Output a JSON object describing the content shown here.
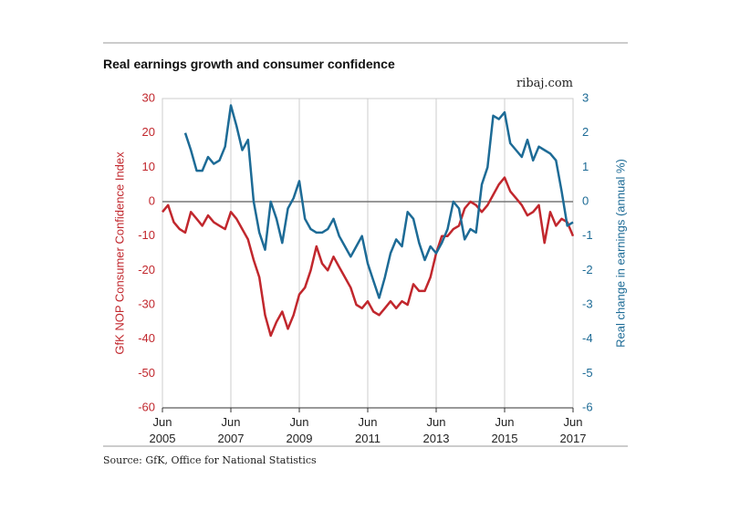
{
  "chart_data": {
    "type": "line",
    "title": "Real earnings growth and consumer confidence",
    "site": "ribaj.com",
    "source": "Source: GfK, Office for National Statistics",
    "ylabel": "GfK NOP Consumer Confidence Index",
    "y2label": "Real change in earnings (annual %)",
    "x": [
      "2005-06",
      "2005-08",
      "2005-10",
      "2005-12",
      "2006-02",
      "2006-04",
      "2006-06",
      "2006-08",
      "2006-10",
      "2006-12",
      "2007-02",
      "2007-04",
      "2007-06",
      "2007-08",
      "2007-10",
      "2007-12",
      "2008-02",
      "2008-04",
      "2008-06",
      "2008-08",
      "2008-10",
      "2008-12",
      "2009-02",
      "2009-04",
      "2009-06",
      "2009-08",
      "2009-10",
      "2009-12",
      "2010-02",
      "2010-04",
      "2010-06",
      "2010-08",
      "2010-10",
      "2010-12",
      "2011-02",
      "2011-04",
      "2011-06",
      "2011-08",
      "2011-10",
      "2011-12",
      "2012-02",
      "2012-04",
      "2012-06",
      "2012-08",
      "2012-10",
      "2012-12",
      "2013-02",
      "2013-04",
      "2013-06",
      "2013-08",
      "2013-10",
      "2013-12",
      "2014-02",
      "2014-04",
      "2014-06",
      "2014-08",
      "2014-10",
      "2014-12",
      "2015-02",
      "2015-04",
      "2015-06",
      "2015-08",
      "2015-10",
      "2015-12",
      "2016-02",
      "2016-04",
      "2016-06",
      "2016-08",
      "2016-10",
      "2016-12",
      "2017-02",
      "2017-04",
      "2017-06"
    ],
    "series": [
      {
        "name": "GfK NOP Consumer Confidence Index",
        "color": "#c1272d",
        "axis": "y",
        "values": [
          -3,
          -1,
          -6,
          -8,
          -9,
          -3,
          -5,
          -7,
          -4,
          -6,
          -7,
          -8,
          -3,
          -5,
          -8,
          -11,
          -17,
          -22,
          -33,
          -39,
          -35,
          -32,
          -37,
          -33,
          -27,
          -25,
          -20,
          -13,
          -18,
          -20,
          -16,
          -19,
          -22,
          -25,
          -30,
          -31,
          -29,
          -32,
          -33,
          -31,
          -29,
          -31,
          -29,
          -30,
          -24,
          -26,
          -26,
          -22,
          -15,
          -10,
          -10,
          -8,
          -7,
          -2,
          0,
          -1,
          -3,
          -1,
          2,
          5,
          7,
          3,
          1,
          -1,
          -4,
          -3,
          -1,
          -12,
          -3,
          -7,
          -5,
          -6,
          -10
        ]
      },
      {
        "name": "Real change in earnings (annual %)",
        "color": "#1d6b96",
        "axis": "y2",
        "values": [
          null,
          null,
          null,
          null,
          2.0,
          1.5,
          0.9,
          0.9,
          1.3,
          1.1,
          1.2,
          1.6,
          2.8,
          2.2,
          1.5,
          1.8,
          0.0,
          -0.9,
          -1.4,
          0.0,
          -0.5,
          -1.2,
          -0.2,
          0.1,
          0.6,
          -0.5,
          -0.8,
          -0.9,
          -0.9,
          -0.8,
          -0.5,
          -1.0,
          -1.3,
          -1.6,
          -1.3,
          -1.0,
          -1.8,
          -2.3,
          -2.8,
          -2.2,
          -1.5,
          -1.1,
          -1.3,
          -0.3,
          -0.5,
          -1.2,
          -1.7,
          -1.3,
          -1.5,
          -1.2,
          -0.8,
          0.0,
          -0.2,
          -1.1,
          -0.8,
          -0.9,
          0.5,
          1.0,
          2.5,
          2.4,
          2.6,
          1.7,
          1.5,
          1.3,
          1.8,
          1.2,
          1.6,
          1.5,
          1.4,
          1.2,
          0.3,
          -0.7,
          -0.6
        ]
      }
    ],
    "xlim": [
      "2005-06",
      "2017-06"
    ],
    "xticks": [
      {
        "value": "2005-06",
        "label": "Jun 2005"
      },
      {
        "value": "2007-06",
        "label": "Jun 2007"
      },
      {
        "value": "2009-06",
        "label": "Jun 2009"
      },
      {
        "value": "2011-06",
        "label": "Jun 2011"
      },
      {
        "value": "2013-06",
        "label": "Jun 2013"
      },
      {
        "value": "2015-06",
        "label": "Jun 2015"
      },
      {
        "value": "2017-06",
        "label": "Jun 2017"
      }
    ],
    "ylim": [
      -60,
      30
    ],
    "yticks": [
      -60,
      -50,
      -40,
      -30,
      -20,
      -10,
      0,
      10,
      20,
      30
    ],
    "y2lim": [
      -6,
      3
    ],
    "y2ticks": [
      -6,
      -5,
      -4,
      -3,
      -2,
      -1,
      0,
      1,
      2,
      3
    ],
    "ycolor": "#c1272d",
    "y2color": "#1d6b96",
    "zero_line": true,
    "xgrid": true
  }
}
